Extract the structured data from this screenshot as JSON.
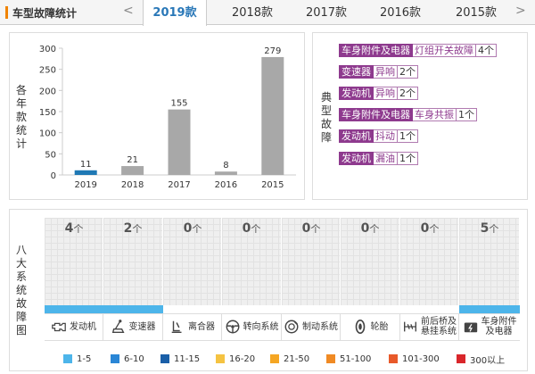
{
  "header": {
    "title": "车型故障统计",
    "prev_glyph": "<",
    "next_glyph": ">",
    "tabs": [
      {
        "label": "2019款",
        "active": true
      },
      {
        "label": "2018款",
        "active": false
      },
      {
        "label": "2017款",
        "active": false
      },
      {
        "label": "2016款",
        "active": false
      },
      {
        "label": "2015款",
        "active": false
      }
    ]
  },
  "chart_side_label": [
    "各",
    "年",
    "款",
    "统",
    "计"
  ],
  "chart_data": {
    "type": "bar",
    "categories": [
      "2019",
      "2018",
      "2017",
      "2016",
      "2015"
    ],
    "values": [
      11,
      21,
      155,
      8,
      279
    ],
    "bar_colors": [
      "#1f78b4",
      "#a8a8a8",
      "#a8a8a8",
      "#a8a8a8",
      "#a8a8a8"
    ],
    "ylim": [
      0,
      300
    ],
    "yticks": [
      0,
      50,
      100,
      150,
      200,
      250,
      300
    ],
    "grid": false
  },
  "faults_side_label": [
    "典",
    "型",
    "故",
    "障"
  ],
  "typical_faults": [
    {
      "category": "车身附件及电器",
      "description": "灯组开关故障",
      "count": "4个"
    },
    {
      "category": "变速器",
      "description": "异响",
      "count": "2个"
    },
    {
      "category": "发动机",
      "description": "异响",
      "count": "2个"
    },
    {
      "category": "车身附件及电器",
      "description": "车身共振",
      "count": "1个"
    },
    {
      "category": "发动机",
      "description": "抖动",
      "count": "1个"
    },
    {
      "category": "发动机",
      "description": "漏油",
      "count": "1个"
    }
  ],
  "grid_side_label": [
    "八",
    "大",
    "系",
    "统",
    "故",
    "障",
    "图"
  ],
  "systems": [
    {
      "name": "发动机",
      "count": "4",
      "unit": "个",
      "icon": "engine-icon",
      "has_bar": true
    },
    {
      "name": "变速器",
      "count": "2",
      "unit": "个",
      "icon": "gearshift-icon",
      "has_bar": true
    },
    {
      "name": "离合器",
      "count": "0",
      "unit": "个",
      "icon": "clutch-pedal-icon",
      "has_bar": false
    },
    {
      "name": "转向系统",
      "count": "0",
      "unit": "个",
      "icon": "steering-wheel-icon",
      "has_bar": false
    },
    {
      "name": "制动系统",
      "count": "0",
      "unit": "个",
      "icon": "brake-disc-icon",
      "has_bar": false
    },
    {
      "name": "轮胎",
      "count": "0",
      "unit": "个",
      "icon": "tire-icon",
      "has_bar": false
    },
    {
      "name": "前后桥及\n悬挂系统",
      "count": "0",
      "unit": "个",
      "icon": "suspension-icon",
      "has_bar": false
    },
    {
      "name": "车身附件\n及电器",
      "count": "5",
      "unit": "个",
      "icon": "car-battery-icon",
      "has_bar": true
    }
  ],
  "legend": [
    {
      "label": "1-5",
      "color": "#4db5ea"
    },
    {
      "label": "6-10",
      "color": "#2a86d6"
    },
    {
      "label": "11-15",
      "color": "#1a5fa8"
    },
    {
      "label": "16-20",
      "color": "#f5c342"
    },
    {
      "label": "21-50",
      "color": "#f5a623"
    },
    {
      "label": "51-100",
      "color": "#f08a24"
    },
    {
      "label": "101-300",
      "color": "#e8592a"
    },
    {
      "label": "300以上",
      "color": "#d9262b"
    }
  ],
  "colors": {
    "accent": "#f08300",
    "active_tab_text": "#2a78b8",
    "fault_tag": "#8e3a8e"
  }
}
